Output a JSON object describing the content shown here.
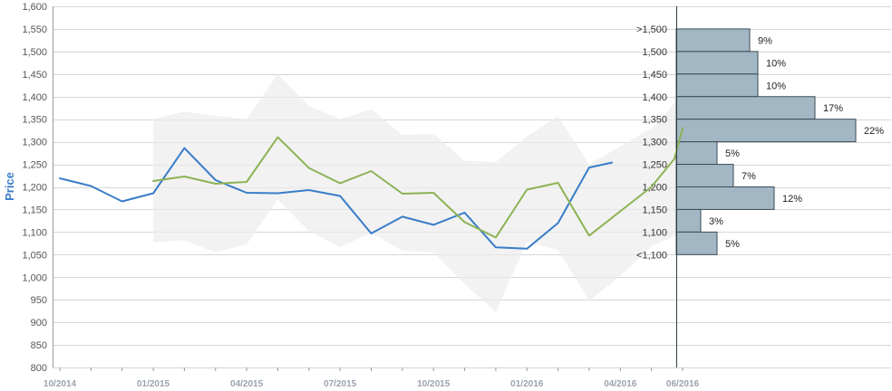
{
  "chart_data": {
    "type": "line",
    "ylabel": "Price",
    "xlabel": "",
    "ylim": [
      800,
      1600
    ],
    "y_ticks": [
      800,
      850,
      900,
      950,
      1000,
      1050,
      1100,
      1150,
      1200,
      1250,
      1300,
      1350,
      1400,
      1450,
      1500,
      1550,
      1600
    ],
    "y_tick_labels": [
      "800",
      "850",
      "900",
      "950",
      "1,000",
      "1,050",
      "1,100",
      "1,150",
      "1,200",
      "1,250",
      "1,300",
      "1,350",
      "1,400",
      "1,450",
      "1,500",
      "1,550",
      "1,600"
    ],
    "xlim": [
      "2014-10",
      "2016-06"
    ],
    "x_tick_labels": [
      {
        "x": "2014-10",
        "label": "10/2014"
      },
      {
        "x": "2015-01",
        "label": "01/2015"
      },
      {
        "x": "2015-04",
        "label": "04/2015"
      },
      {
        "x": "2015-07",
        "label": "07/2015"
      },
      {
        "x": "2015-10",
        "label": "10/2015"
      },
      {
        "x": "2016-01",
        "label": "01/2016"
      },
      {
        "x": "2016-04",
        "label": "04/2016"
      },
      {
        "x": "2016-06",
        "label": "06/2016"
      }
    ],
    "series": [
      {
        "type": "line",
        "color": "#3a7dc9",
        "points": [
          [
            "2014-10",
            1219
          ],
          [
            "2014-11",
            1202
          ],
          [
            "2014-12",
            1168
          ],
          [
            "2015-01",
            1186
          ],
          [
            "2015-02",
            1286
          ],
          [
            "2015-03",
            1215
          ],
          [
            "2015-04",
            1187
          ],
          [
            "2015-05",
            1186
          ],
          [
            "2015-06",
            1193
          ],
          [
            "2015-07",
            1180
          ],
          [
            "2015-08",
            1097
          ],
          [
            "2015-09",
            1134
          ],
          [
            "2015-10",
            1116
          ],
          [
            "2015-11",
            1143
          ],
          [
            "2015-12",
            1066
          ],
          [
            "2016-01",
            1063
          ],
          [
            "2016-02",
            1120
          ],
          [
            "2016-03",
            1243
          ],
          [
            "2016-03-23",
            1254
          ]
        ]
      },
      {
        "type": "line",
        "color": "#8db255",
        "points": [
          [
            "2015-01",
            1213
          ],
          [
            "2015-02",
            1223
          ],
          [
            "2015-03",
            1207
          ],
          [
            "2015-04",
            1211
          ],
          [
            "2015-05",
            1310
          ],
          [
            "2015-06",
            1242
          ],
          [
            "2015-07",
            1208
          ],
          [
            "2015-08",
            1235
          ],
          [
            "2015-09",
            1185
          ],
          [
            "2015-10",
            1187
          ],
          [
            "2015-11",
            1122
          ],
          [
            "2015-12",
            1088
          ],
          [
            "2016-01",
            1194
          ],
          [
            "2016-02",
            1209
          ],
          [
            "2016-03",
            1092
          ],
          [
            "2016-04",
            1146
          ],
          [
            "2016-05",
            1200
          ],
          [
            "2016-05-23",
            1262
          ],
          [
            "2016-06",
            1330
          ]
        ]
      },
      {
        "type": "area",
        "color": "#ececec",
        "upper": [
          [
            "2015-01",
            1350
          ],
          [
            "2015-02",
            1367
          ],
          [
            "2015-03",
            1358
          ],
          [
            "2015-04",
            1350
          ],
          [
            "2015-05",
            1450
          ],
          [
            "2015-06",
            1380
          ],
          [
            "2015-07",
            1350
          ],
          [
            "2015-08",
            1372
          ],
          [
            "2015-09",
            1315
          ],
          [
            "2015-10",
            1318
          ],
          [
            "2015-11",
            1258
          ],
          [
            "2015-12",
            1255
          ],
          [
            "2016-01",
            1312
          ],
          [
            "2016-02",
            1357
          ],
          [
            "2016-03",
            1250
          ],
          [
            "2016-04",
            1290
          ],
          [
            "2016-05",
            1330
          ],
          [
            "2016-06",
            1405
          ]
        ],
        "lower": [
          [
            "2015-01",
            1077
          ],
          [
            "2015-02",
            1082
          ],
          [
            "2015-03",
            1055
          ],
          [
            "2015-04",
            1073
          ],
          [
            "2015-05",
            1172
          ],
          [
            "2015-06",
            1102
          ],
          [
            "2015-07",
            1067
          ],
          [
            "2015-08",
            1098
          ],
          [
            "2015-09",
            1058
          ],
          [
            "2015-10",
            1055
          ],
          [
            "2015-11",
            985
          ],
          [
            "2015-12",
            923
          ],
          [
            "2016-01",
            1078
          ],
          [
            "2016-02",
            1060
          ],
          [
            "2016-03",
            948
          ],
          [
            "2016-04",
            1003
          ],
          [
            "2016-05",
            1068
          ],
          [
            "2016-06",
            1100
          ]
        ]
      }
    ],
    "distribution": {
      "type": "bar",
      "orientation": "horizontal",
      "color": "#a2b7c3",
      "bins": [
        {
          "label": ">1,500",
          "y_range": [
            1500,
            1550
          ],
          "value": 9,
          "value_label": "9%"
        },
        {
          "label": "1,500",
          "y_range": [
            1450,
            1500
          ],
          "value": 10,
          "value_label": "10%"
        },
        {
          "label": "1,450",
          "y_range": [
            1400,
            1450
          ],
          "value": 10,
          "value_label": "10%"
        },
        {
          "label": "1,400",
          "y_range": [
            1350,
            1400
          ],
          "value": 17,
          "value_label": "17%"
        },
        {
          "label": "1,350",
          "y_range": [
            1300,
            1350
          ],
          "value": 22,
          "value_label": "22%"
        },
        {
          "label": "1,300",
          "y_range": [
            1250,
            1300
          ],
          "value": 5,
          "value_label": "5%"
        },
        {
          "label": "1,250",
          "y_range": [
            1200,
            1250
          ],
          "value": 7,
          "value_label": "7%"
        },
        {
          "label": "1,200",
          "y_range": [
            1150,
            1200
          ],
          "value": 12,
          "value_label": "12%"
        },
        {
          "label": "1,150",
          "y_range": [
            1100,
            1150
          ],
          "value": 3,
          "value_label": "3%"
        },
        {
          "label": "1,100",
          "y_range": [
            1050,
            1100
          ],
          "value": 5,
          "value_label": "5%"
        }
      ],
      "bottom_label": "<1,100"
    },
    "grid": true
  }
}
